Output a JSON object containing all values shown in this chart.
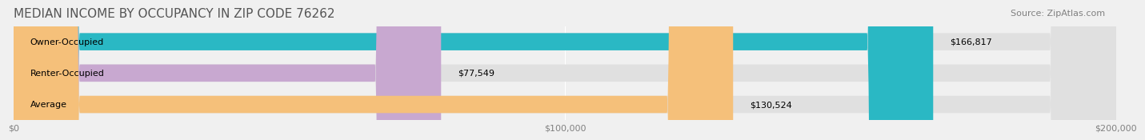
{
  "title": "MEDIAN INCOME BY OCCUPANCY IN ZIP CODE 76262",
  "source": "Source: ZipAtlas.com",
  "categories": [
    "Owner-Occupied",
    "Renter-Occupied",
    "Average"
  ],
  "values": [
    166817,
    77549,
    130524
  ],
  "labels": [
    "$166,817",
    "$77,549",
    "$130,524"
  ],
  "bar_colors": [
    "#2ab8c4",
    "#c8a8d0",
    "#f5c07a"
  ],
  "bar_edge_colors": [
    "#2ab8c4",
    "#c8a8d0",
    "#f5c07a"
  ],
  "background_color": "#f0f0f0",
  "bar_bg_color": "#e8e8e8",
  "xlim": [
    0,
    200000
  ],
  "xticks": [
    0,
    100000,
    200000
  ],
  "xticklabels": [
    "$0",
    "$100,000",
    "$200,000"
  ],
  "title_fontsize": 11,
  "source_fontsize": 8,
  "label_fontsize": 8,
  "cat_fontsize": 8,
  "tick_fontsize": 8
}
